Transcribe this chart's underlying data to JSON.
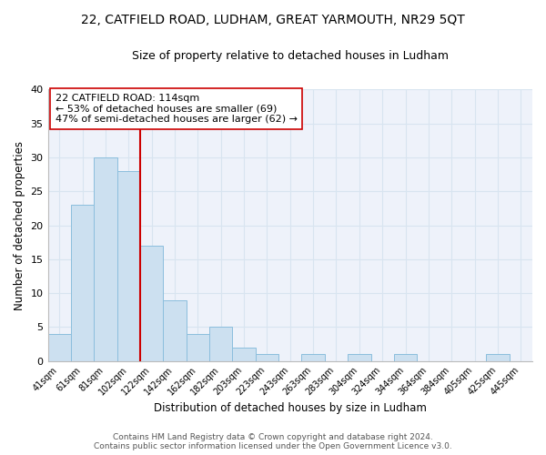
{
  "title": "22, CATFIELD ROAD, LUDHAM, GREAT YARMOUTH, NR29 5QT",
  "subtitle": "Size of property relative to detached houses in Ludham",
  "xlabel": "Distribution of detached houses by size in Ludham",
  "ylabel": "Number of detached properties",
  "bar_labels": [
    "41sqm",
    "61sqm",
    "81sqm",
    "102sqm",
    "122sqm",
    "142sqm",
    "162sqm",
    "182sqm",
    "203sqm",
    "223sqm",
    "243sqm",
    "263sqm",
    "283sqm",
    "304sqm",
    "324sqm",
    "344sqm",
    "364sqm",
    "384sqm",
    "405sqm",
    "425sqm",
    "445sqm"
  ],
  "bar_values": [
    4,
    23,
    30,
    28,
    17,
    9,
    4,
    5,
    2,
    1,
    0,
    1,
    0,
    1,
    0,
    1,
    0,
    0,
    0,
    1,
    0
  ],
  "bar_color": "#cce0f0",
  "bar_edge_color": "#8bbedd",
  "vline_color": "#cc0000",
  "vline_x_index": 4,
  "annotation_text": "22 CATFIELD ROAD: 114sqm\n← 53% of detached houses are smaller (69)\n47% of semi-detached houses are larger (62) →",
  "annotation_box_edgecolor": "#cc0000",
  "annotation_box_facecolor": "#ffffff",
  "ylim": [
    0,
    40
  ],
  "yticks": [
    0,
    5,
    10,
    15,
    20,
    25,
    30,
    35,
    40
  ],
  "grid_color": "#d8e4f0",
  "footer_line1": "Contains HM Land Registry data © Crown copyright and database right 2024.",
  "footer_line2": "Contains public sector information licensed under the Open Government Licence v3.0.",
  "background_color": "#ffffff",
  "plot_bg_color": "#eef2fa",
  "title_fontsize": 10,
  "subtitle_fontsize": 9,
  "annotation_fontsize": 8,
  "footer_fontsize": 6.5
}
